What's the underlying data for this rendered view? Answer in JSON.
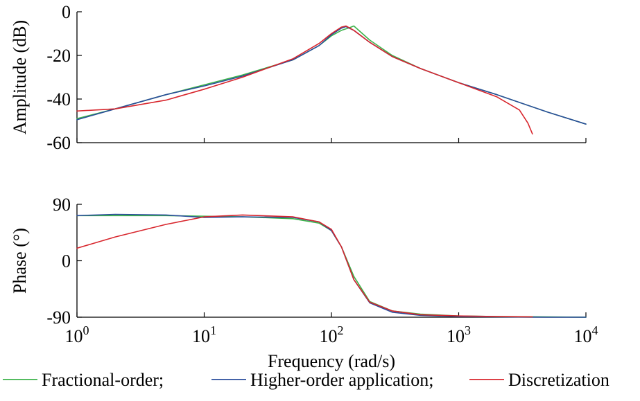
{
  "chart_data": [
    {
      "type": "line",
      "ylabel": "Amplitude (dB)",
      "xscale": "log",
      "xlim": [
        1,
        10000
      ],
      "ylim": [
        -60,
        0
      ],
      "yticks": [
        0,
        -20,
        -40,
        -60
      ],
      "yticklabels": [
        "0",
        "-20",
        "-40",
        "-60"
      ],
      "grid": false,
      "series": [
        {
          "name": "Fractional-order;",
          "color": "#3cb34a",
          "x": [
            1,
            2,
            5,
            10,
            20,
            50,
            80,
            100,
            120,
            140,
            150,
            200,
            300,
            500,
            1000,
            2000,
            5000,
            10000
          ],
          "y": [
            -49,
            -44.5,
            -38,
            -33.5,
            -29,
            -22,
            -15.5,
            -11,
            -8.5,
            -7.2,
            -6.5,
            -13,
            -20,
            -26,
            -32.5,
            -38,
            -46,
            -51.5
          ]
        },
        {
          "name": "Higher-order application;",
          "color": "#2a4d9b",
          "x": [
            1,
            2,
            5,
            10,
            20,
            50,
            80,
            100,
            120,
            130,
            150,
            200,
            300,
            500,
            1000,
            2000,
            5000,
            10000
          ],
          "y": [
            -49.5,
            -44.5,
            -38,
            -34,
            -29.5,
            -22,
            -15.5,
            -10.5,
            -7.5,
            -6.8,
            -8.5,
            -14,
            -20.5,
            -26,
            -32.5,
            -38,
            -46,
            -51.5
          ]
        },
        {
          "name": "Discretization",
          "color": "#d8262d",
          "x": [
            1,
            2,
            5,
            10,
            20,
            50,
            80,
            100,
            120,
            130,
            150,
            200,
            300,
            500,
            1000,
            2000,
            3000,
            3500,
            3800
          ],
          "y": [
            -45.5,
            -44.5,
            -40.5,
            -35.5,
            -30,
            -21.5,
            -14.5,
            -10,
            -7,
            -6.5,
            -8.5,
            -14,
            -20.5,
            -26,
            -32.5,
            -39,
            -45,
            -51,
            -56
          ]
        }
      ]
    },
    {
      "type": "line",
      "xlabel": "Frequency (rad/s)",
      "ylabel": "Phase (°)",
      "xscale": "log",
      "xlim": [
        1,
        10000
      ],
      "ylim": [
        -90,
        90
      ],
      "yticks": [
        90,
        0,
        -90
      ],
      "yticklabels": [
        "90",
        "0",
        "-90"
      ],
      "xticks": [
        1,
        10,
        100,
        1000,
        10000
      ],
      "xticklabels": [
        {
          "base": "10",
          "exp": "0"
        },
        {
          "base": "10",
          "exp": "1"
        },
        {
          "base": "10",
          "exp": "2"
        },
        {
          "base": "10",
          "exp": "3"
        },
        {
          "base": "10",
          "exp": "4"
        }
      ],
      "grid": false,
      "series": [
        {
          "name": "Fractional-order;",
          "color": "#3cb34a",
          "x": [
            1,
            2,
            5,
            10,
            20,
            50,
            80,
            100,
            120,
            150,
            200,
            300,
            500,
            1000,
            2000,
            5000,
            10000
          ],
          "y": [
            72,
            72,
            72,
            71,
            70,
            67,
            60,
            48,
            22,
            -25,
            -65,
            -80,
            -85,
            -88,
            -89,
            -89.5,
            -90
          ]
        },
        {
          "name": "Higher-order application;",
          "color": "#2a4d9b",
          "x": [
            1,
            2,
            5,
            10,
            20,
            50,
            80,
            100,
            120,
            150,
            200,
            300,
            500,
            1000,
            2000,
            5000,
            10000
          ],
          "y": [
            72,
            74,
            73,
            69,
            70,
            69,
            62,
            48,
            22,
            -30,
            -67,
            -82,
            -87,
            -89,
            -89.5,
            -90,
            -90
          ]
        },
        {
          "name": "Discretization",
          "color": "#d8262d",
          "x": [
            1,
            2,
            5,
            10,
            20,
            50,
            80,
            100,
            120,
            150,
            200,
            300,
            500,
            1000,
            2000,
            3800
          ],
          "y": [
            20,
            38,
            58,
            70,
            73,
            70,
            62,
            50,
            22,
            -30,
            -66,
            -80,
            -86,
            -88,
            -89,
            -89.5
          ]
        }
      ]
    }
  ],
  "legend": {
    "placement": "bottom",
    "items": [
      {
        "label": "Fractional-order;",
        "color": "#3cb34a"
      },
      {
        "label": "Higher-order application;",
        "color": "#2a4d9b"
      },
      {
        "label": "Discretization",
        "color": "#d8262d"
      }
    ]
  }
}
